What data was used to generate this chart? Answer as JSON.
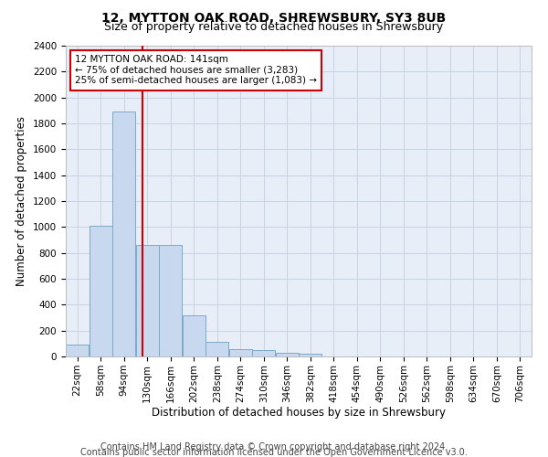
{
  "title": "12, MYTTON OAK ROAD, SHREWSBURY, SY3 8UB",
  "subtitle": "Size of property relative to detached houses in Shrewsbury",
  "xlabel": "Distribution of detached houses by size in Shrewsbury",
  "ylabel": "Number of detached properties",
  "footnote1": "Contains HM Land Registry data © Crown copyright and database right 2024.",
  "footnote2": "Contains public sector information licensed under the Open Government Licence v3.0.",
  "annotation_line1": "12 MYTTON OAK ROAD: 141sqm",
  "annotation_line2": "← 75% of detached houses are smaller (3,283)",
  "annotation_line3": "25% of semi-detached houses are larger (1,083) →",
  "bar_edges": [
    22,
    58,
    94,
    130,
    166,
    202,
    238,
    274,
    310,
    346,
    382,
    418,
    454,
    490,
    526,
    562,
    598,
    634,
    670,
    706,
    742
  ],
  "bar_values": [
    95,
    1010,
    1890,
    860,
    860,
    315,
    115,
    58,
    48,
    30,
    22,
    0,
    0,
    0,
    0,
    0,
    0,
    0,
    0,
    0
  ],
  "bar_color": "#c8d8ee",
  "bar_edge_color": "#7aaaca",
  "vline_color": "#cc0000",
  "vline_x": 141,
  "annotation_box_color": "#cc0000",
  "grid_color": "#c8d4e4",
  "bg_color": "#e8eef8",
  "ylim": [
    0,
    2400
  ],
  "yticks": [
    0,
    200,
    400,
    600,
    800,
    1000,
    1200,
    1400,
    1600,
    1800,
    2000,
    2200,
    2400
  ],
  "title_fontsize": 10,
  "subtitle_fontsize": 9,
  "axis_label_fontsize": 8.5,
  "tick_fontsize": 7.5,
  "annotation_fontsize": 7.5,
  "footnote_fontsize": 7
}
